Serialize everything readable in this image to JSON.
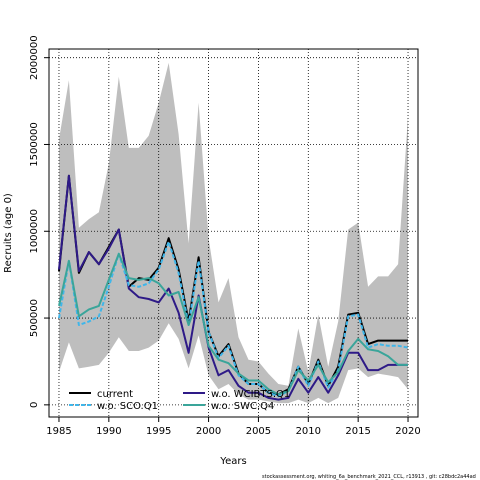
{
  "chart_data": {
    "type": "line",
    "xlabel": "Years",
    "ylabel": "Recruits (age 0)",
    "xlim": [
      1984,
      2021
    ],
    "ylim": [
      -70000,
      2050000
    ],
    "x_ticks": [
      1985,
      1990,
      1995,
      2000,
      2005,
      2010,
      2015,
      2020
    ],
    "y_ticks": [
      0,
      500000,
      1000000,
      1500000,
      2000000
    ],
    "y_tick_labels": [
      "0",
      "500000",
      "1000000",
      "1500000",
      "2000000"
    ],
    "grid": true,
    "legend_position": "bottom-left",
    "x": [
      1985,
      1986,
      1987,
      1988,
      1989,
      1990,
      1991,
      1992,
      1993,
      1994,
      1995,
      1996,
      1997,
      1998,
      1999,
      2000,
      2001,
      2002,
      2003,
      2004,
      2005,
      2006,
      2007,
      2008,
      2009,
      2010,
      2011,
      2012,
      2013,
      2014,
      2015,
      2016,
      2017,
      2018,
      2019,
      2020
    ],
    "band": {
      "upper": [
        1530000,
        1870000,
        1020000,
        1070000,
        1110000,
        1390000,
        1890000,
        1480000,
        1480000,
        1550000,
        1740000,
        1970000,
        1560000,
        930000,
        1740000,
        960000,
        590000,
        730000,
        390000,
        260000,
        250000,
        180000,
        120000,
        110000,
        440000,
        190000,
        520000,
        220000,
        480000,
        1010000,
        1050000,
        680000,
        740000,
        740000,
        810000,
        1660000
      ],
      "lower": [
        190000,
        360000,
        210000,
        220000,
        230000,
        300000,
        390000,
        310000,
        310000,
        330000,
        370000,
        470000,
        380000,
        210000,
        400000,
        170000,
        90000,
        120000,
        60000,
        30000,
        30000,
        20000,
        10000,
        10000,
        30000,
        10000,
        40000,
        10000,
        40000,
        200000,
        210000,
        160000,
        180000,
        170000,
        160000,
        90000
      ]
    },
    "series": [
      {
        "name": "current",
        "color": "#000000",
        "dash": "solid",
        "values": [
          770000,
          1320000,
          760000,
          880000,
          810000,
          910000,
          1010000,
          680000,
          730000,
          720000,
          790000,
          960000,
          780000,
          480000,
          850000,
          420000,
          280000,
          350000,
          180000,
          120000,
          120000,
          70000,
          60000,
          90000,
          220000,
          120000,
          260000,
          110000,
          220000,
          520000,
          530000,
          350000,
          370000,
          370000,
          370000,
          370000
        ]
      },
      {
        "name": "w.o. WCIBTS.Q1",
        "color": "#2e1a87",
        "dash": "solid",
        "values": [
          780000,
          1320000,
          770000,
          880000,
          810000,
          900000,
          1010000,
          670000,
          620000,
          610000,
          590000,
          670000,
          530000,
          300000,
          630000,
          330000,
          170000,
          200000,
          110000,
          70000,
          70000,
          40000,
          30000,
          40000,
          150000,
          70000,
          160000,
          70000,
          170000,
          300000,
          300000,
          200000,
          200000,
          230000,
          230000,
          230000
        ]
      },
      {
        "name": "w.o. SCO.Q1",
        "color": "#3fb6ea",
        "dash": "dashed",
        "values": [
          500000,
          830000,
          460000,
          480000,
          510000,
          680000,
          870000,
          690000,
          680000,
          700000,
          780000,
          940000,
          760000,
          460000,
          830000,
          420000,
          270000,
          340000,
          170000,
          120000,
          120000,
          70000,
          50000,
          80000,
          220000,
          110000,
          250000,
          100000,
          200000,
          510000,
          520000,
          330000,
          350000,
          340000,
          340000,
          330000
        ]
      },
      {
        "name": "w.o. SWC.Q4",
        "color": "#3aa59a",
        "dash": "solid",
        "values": [
          570000,
          830000,
          510000,
          550000,
          570000,
          720000,
          870000,
          730000,
          720000,
          730000,
          700000,
          630000,
          650000,
          460000,
          620000,
          340000,
          260000,
          240000,
          180000,
          140000,
          140000,
          90000,
          60000,
          80000,
          200000,
          140000,
          230000,
          130000,
          190000,
          310000,
          380000,
          320000,
          310000,
          280000,
          230000,
          230000
        ]
      }
    ]
  },
  "footer": "stockassessment.org, whiting_6a_benchmark_2021_CCL, r13913 , git: c28bdc2a44ad"
}
